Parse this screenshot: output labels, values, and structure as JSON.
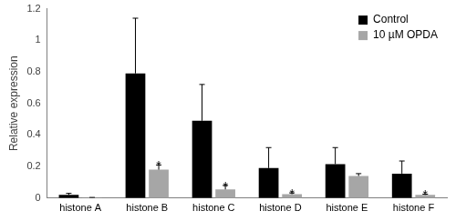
{
  "chart_data": {
    "type": "bar",
    "categories": [
      "histone A",
      "histone B",
      "histone C",
      "histone D",
      "histone E",
      "histone F"
    ],
    "series": [
      {
        "name": "Control",
        "color": "#000000",
        "values": [
          0.02,
          0.79,
          0.49,
          0.19,
          0.215,
          0.155
        ],
        "errors": [
          0.01,
          0.35,
          0.23,
          0.13,
          0.105,
          0.08
        ]
      },
      {
        "name": "10 µM OPDA",
        "color": "#a6a6a6",
        "values": [
          0.002,
          0.18,
          0.055,
          0.025,
          0.14,
          0.02
        ],
        "errors": [
          0.002,
          0.03,
          0.025,
          0.008,
          0.015,
          0.005
        ],
        "significance": [
          null,
          "*",
          "*",
          "*",
          null,
          "*"
        ]
      }
    ],
    "y_label": "Relative expression",
    "ylim": [
      0,
      1.2
    ],
    "yticks": [
      0,
      0.2,
      0.4,
      0.6,
      0.8,
      1,
      1.2
    ],
    "grid": false,
    "legend": "top right"
  }
}
